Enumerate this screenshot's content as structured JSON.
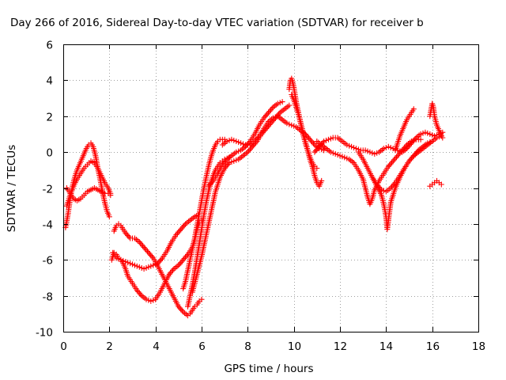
{
  "chart_data": {
    "type": "scatter",
    "title": "Day 266 of 2016, Sidereal Day-to-day VTEC variation (SDTVAR) for receiver b",
    "xlabel": "GPS time / hours",
    "ylabel": "SDTVAR / TECUs",
    "xlim": [
      0,
      18
    ],
    "ylim": [
      -10,
      6
    ],
    "xticks": [
      "0",
      "2",
      "4",
      "6",
      "8",
      "10",
      "12",
      "14",
      "16",
      "18"
    ],
    "yticks": [
      "-10",
      "-8",
      "-6",
      "-4",
      "-2",
      "0",
      "2",
      "4",
      "6"
    ],
    "grid": true,
    "legend": "none",
    "marker": "+",
    "color": "#ff0000",
    "series": [
      {
        "x": [
          0.1,
          0.2,
          0.3,
          0.4,
          0.5,
          0.6,
          0.7,
          0.8,
          0.9,
          1.0,
          1.1,
          1.2,
          1.3,
          1.4,
          1.5,
          1.6,
          1.7,
          1.8,
          1.9,
          2.0
        ],
        "y": [
          -4.2,
          -3.5,
          -2.6,
          -1.9,
          -1.4,
          -1.0,
          -0.7,
          -0.4,
          -0.1,
          0.2,
          0.4,
          0.5,
          0.3,
          -0.2,
          -0.9,
          -1.5,
          -2.2,
          -2.8,
          -3.3,
          -3.6
        ]
      },
      {
        "x": [
          0.15,
          0.3,
          0.45,
          0.6,
          0.75,
          0.9,
          1.05,
          1.2,
          1.35,
          1.5,
          1.65,
          1.8,
          1.95,
          2.05
        ],
        "y": [
          -3.0,
          -2.4,
          -1.9,
          -1.5,
          -1.2,
          -0.9,
          -0.7,
          -0.5,
          -0.6,
          -0.9,
          -1.3,
          -1.7,
          -2.0,
          -2.3
        ]
      },
      {
        "x": [
          0.15,
          0.3,
          0.45,
          0.6,
          0.75,
          0.9,
          1.05,
          1.2,
          1.35,
          1.5,
          1.65,
          1.8,
          1.95,
          2.05
        ],
        "y": [
          -2.0,
          -2.3,
          -2.6,
          -2.7,
          -2.6,
          -2.4,
          -2.2,
          -2.1,
          -2.0,
          -2.1,
          -2.2,
          -2.3,
          -2.3,
          -2.4
        ]
      },
      {
        "x": [
          2.1,
          2.2,
          2.3,
          2.4,
          2.5,
          2.6,
          2.7,
          2.8,
          3.0,
          3.2,
          3.4,
          3.6,
          3.8,
          4.0,
          4.2,
          4.4,
          4.6,
          4.8,
          5.0,
          5.2,
          5.4,
          5.6,
          5.7,
          5.8,
          5.9,
          6.0
        ],
        "y": [
          -6.0,
          -5.6,
          -5.7,
          -5.9,
          -6.0,
          -6.2,
          -6.5,
          -6.9,
          -7.3,
          -7.7,
          -8.0,
          -8.2,
          -8.3,
          -8.2,
          -7.8,
          -7.3,
          -6.8,
          -6.5,
          -6.3,
          -6.0,
          -5.7,
          -5.3,
          -4.9,
          -4.3,
          -3.9,
          -3.8
        ]
      },
      {
        "x": [
          2.15,
          2.3,
          2.5,
          2.7,
          2.9,
          3.1,
          3.3,
          3.5,
          3.7,
          3.9,
          4.1,
          4.3,
          4.5,
          4.7,
          4.9,
          5.1,
          5.3,
          5.5,
          5.7,
          5.85
        ],
        "y": [
          -5.6,
          -5.9,
          -6.0,
          -6.1,
          -6.2,
          -6.3,
          -6.4,
          -6.5,
          -6.4,
          -6.3,
          -6.2,
          -5.9,
          -5.5,
          -5.0,
          -4.6,
          -4.3,
          -4.0,
          -3.8,
          -3.6,
          -3.5
        ]
      },
      {
        "x": [
          2.2,
          2.3,
          2.4,
          2.5,
          2.7,
          2.9,
          3.1,
          3.3,
          3.5,
          3.7,
          3.9,
          4.0,
          4.2,
          4.4,
          4.6,
          4.8,
          5.0,
          5.2,
          5.4,
          5.5,
          5.6,
          5.7,
          5.8,
          5.9,
          6.0
        ],
        "y": [
          -4.4,
          -4.1,
          -4.0,
          -4.1,
          -4.5,
          -4.8,
          -4.8,
          -5.0,
          -5.3,
          -5.6,
          -5.9,
          -6.1,
          -6.6,
          -7.1,
          -7.6,
          -8.1,
          -8.6,
          -8.9,
          -9.1,
          -9.0,
          -8.8,
          -8.6,
          -8.5,
          -8.3,
          -8.2
        ]
      },
      {
        "x": [
          5.2,
          5.3,
          5.4,
          5.5,
          5.6,
          5.7,
          5.8,
          5.9,
          6.0,
          6.1,
          6.2,
          6.3,
          6.4,
          6.5,
          6.6,
          6.7,
          6.8,
          6.9,
          7.0
        ],
        "y": [
          -7.6,
          -7.2,
          -6.6,
          -6.0,
          -5.4,
          -4.8,
          -4.1,
          -3.4,
          -2.7,
          -2.0,
          -1.4,
          -0.8,
          -0.3,
          0.1,
          0.4,
          0.6,
          0.7,
          0.7,
          0.7
        ]
      },
      {
        "x": [
          5.4,
          5.5,
          5.6,
          5.7,
          5.8,
          5.9,
          6.0,
          6.1,
          6.2,
          6.3,
          6.4,
          6.5,
          6.6,
          6.7,
          6.8,
          6.9,
          7.0,
          7.2
        ],
        "y": [
          -8.6,
          -8.0,
          -7.4,
          -6.7,
          -5.9,
          -5.1,
          -4.3,
          -3.5,
          -2.8,
          -2.2,
          -1.7,
          -1.3,
          -1.0,
          -0.8,
          -0.6,
          -0.5,
          -0.4,
          -0.3
        ]
      },
      {
        "x": [
          5.6,
          5.8,
          6.0,
          6.2,
          6.4,
          6.6,
          6.8,
          7.0,
          7.2,
          7.4,
          7.6,
          7.8,
          8.0,
          8.2,
          8.4,
          8.6,
          8.8,
          9.0,
          9.2,
          9.4,
          9.6,
          9.8
        ],
        "y": [
          -7.8,
          -6.8,
          -5.8,
          -4.6,
          -3.4,
          -2.2,
          -1.4,
          -0.9,
          -0.6,
          -0.5,
          -0.4,
          -0.2,
          0.0,
          0.3,
          0.6,
          1.0,
          1.3,
          1.6,
          1.9,
          2.2,
          2.4,
          2.6
        ]
      },
      {
        "x": [
          6.3,
          6.5,
          6.7,
          6.9,
          7.1,
          7.3,
          7.5,
          7.7,
          7.9,
          8.1,
          8.3,
          8.5,
          8.7,
          8.9,
          9.1,
          9.3,
          9.5
        ],
        "y": [
          -1.9,
          -1.6,
          -1.2,
          -0.7,
          -0.4,
          -0.2,
          0.0,
          0.1,
          0.3,
          0.6,
          1.0,
          1.5,
          1.9,
          2.2,
          2.5,
          2.7,
          2.8
        ]
      },
      {
        "x": [
          6.9,
          7.1,
          7.3,
          7.5,
          7.7,
          7.9,
          8.1,
          8.3,
          8.5,
          8.7,
          8.9,
          9.1,
          9.3,
          9.5,
          9.7,
          9.9,
          10.1,
          10.3,
          10.5,
          10.7,
          10.9,
          11.1,
          11.3
        ],
        "y": [
          0.4,
          0.6,
          0.7,
          0.6,
          0.5,
          0.4,
          0.4,
          0.6,
          0.9,
          1.3,
          1.7,
          1.9,
          2.0,
          1.8,
          1.6,
          1.5,
          1.4,
          1.2,
          1.0,
          0.7,
          0.4,
          0.2,
          0.1
        ]
      },
      {
        "x": [
          9.8,
          9.85,
          9.9,
          9.95,
          10.0,
          10.05,
          10.1,
          10.2,
          10.3,
          10.4,
          10.5,
          10.6,
          10.7,
          10.8,
          10.9,
          11.0,
          11.1,
          11.2
        ],
        "y": [
          3.5,
          4.0,
          4.1,
          3.9,
          3.6,
          3.2,
          2.8,
          2.2,
          1.6,
          1.0,
          0.5,
          0.1,
          -0.4,
          -0.8,
          -1.3,
          -1.7,
          -1.9,
          -1.6
        ]
      },
      {
        "x": [
          9.9,
          10.0,
          10.1,
          10.2,
          10.3,
          10.4,
          10.5,
          10.6,
          10.7,
          10.8,
          10.9,
          11.0
        ],
        "y": [
          3.2,
          2.9,
          2.5,
          2.1,
          1.6,
          1.1,
          0.6,
          0.1,
          -0.3,
          -0.6,
          -0.8,
          -0.9
        ]
      },
      {
        "x": [
          10.9,
          11.1,
          11.3,
          11.5,
          11.7,
          11.9,
          12.1,
          12.3,
          12.5,
          12.7,
          12.9,
          13.1,
          13.3,
          13.5,
          13.7,
          13.9,
          14.1,
          14.3,
          14.5,
          14.7,
          14.9,
          15.1,
          15.3,
          15.5,
          15.7,
          15.9,
          16.1,
          16.3,
          16.45
        ],
        "y": [
          0.0,
          0.3,
          0.6,
          0.7,
          0.8,
          0.8,
          0.6,
          0.4,
          0.3,
          0.2,
          0.1,
          0.1,
          0.0,
          -0.1,
          0.0,
          0.2,
          0.3,
          0.2,
          0.1,
          0.0,
          0.2,
          0.5,
          0.8,
          1.0,
          1.1,
          1.0,
          0.9,
          1.0,
          1.1
        ]
      },
      {
        "x": [
          11.0,
          11.2,
          11.4,
          11.6,
          11.8,
          12.0,
          12.2,
          12.4,
          12.6,
          12.8,
          13.0,
          13.1,
          13.2,
          13.3,
          13.4,
          13.5,
          13.7,
          13.9,
          14.1,
          14.3,
          14.5,
          14.7,
          14.9,
          15.1,
          15.3,
          15.5
        ],
        "y": [
          0.6,
          0.4,
          0.2,
          0.0,
          -0.1,
          -0.2,
          -0.3,
          -0.4,
          -0.6,
          -1.0,
          -1.5,
          -2.0,
          -2.5,
          -2.9,
          -2.6,
          -2.1,
          -1.6,
          -1.2,
          -0.8,
          -0.5,
          -0.2,
          0.1,
          0.4,
          0.6,
          0.7,
          0.7
        ]
      },
      {
        "x": [
          12.8,
          13.0,
          13.2,
          13.4,
          13.6,
          13.8,
          13.9,
          14.0,
          14.05,
          14.1,
          14.2,
          14.4,
          14.6,
          14.8,
          15.0,
          15.2,
          15.4,
          15.6,
          15.8,
          16.0
        ],
        "y": [
          0.0,
          -0.4,
          -0.9,
          -1.4,
          -1.9,
          -2.4,
          -2.9,
          -3.6,
          -4.3,
          -3.8,
          -2.8,
          -2.0,
          -1.4,
          -0.9,
          -0.5,
          -0.2,
          0.1,
          0.3,
          0.5,
          0.6
        ]
      },
      {
        "x": [
          13.4,
          13.6,
          13.8,
          14.0,
          14.2,
          14.4,
          14.6,
          14.8,
          15.0,
          15.2,
          15.4,
          15.6,
          15.8,
          16.0,
          16.2,
          16.4
        ],
        "y": [
          -1.4,
          -1.8,
          -2.1,
          -2.2,
          -2.0,
          -1.7,
          -1.3,
          -0.9,
          -0.5,
          -0.2,
          0.0,
          0.2,
          0.4,
          0.6,
          0.8,
          0.9
        ]
      },
      {
        "x": [
          14.4,
          14.5,
          14.6,
          14.7,
          14.8,
          14.9,
          15.0,
          15.1,
          15.2
        ],
        "y": [
          0.1,
          0.5,
          0.9,
          1.2,
          1.5,
          1.8,
          2.0,
          2.2,
          2.4
        ]
      },
      {
        "x": [
          15.9,
          16.0,
          16.05,
          16.1,
          16.2,
          16.3,
          16.4,
          16.45
        ],
        "y": [
          2.0,
          2.7,
          2.5,
          2.0,
          1.5,
          1.2,
          0.9,
          0.8
        ]
      },
      {
        "x": [
          15.9,
          16.0,
          16.1,
          16.2,
          16.3,
          16.4
        ],
        "y": [
          -1.9,
          -1.8,
          -1.7,
          -1.6,
          -1.7,
          -1.8
        ]
      }
    ]
  }
}
